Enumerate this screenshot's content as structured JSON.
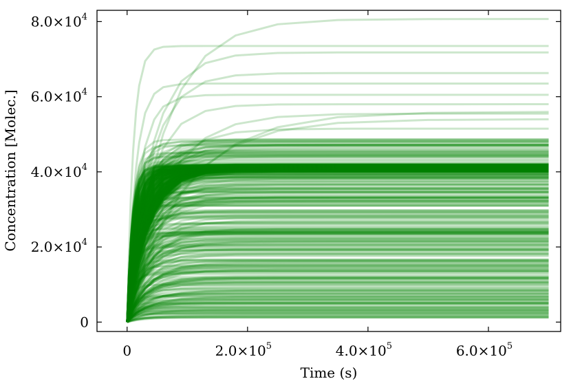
{
  "chart_data": {
    "type": "line",
    "xlabel": "Time (s)",
    "ylabel": "Concentration [Molec.]",
    "xlim": [
      -50000,
      720000
    ],
    "ylim": [
      -2500,
      83000
    ],
    "xticks": [
      {
        "value": 0,
        "mant": "0",
        "exp": ""
      },
      {
        "value": 200000,
        "mant": "2.0×10",
        "exp": "5"
      },
      {
        "value": 400000,
        "mant": "4.0×10",
        "exp": "5"
      },
      {
        "value": 600000,
        "mant": "6.0×10",
        "exp": "5"
      }
    ],
    "yticks": [
      {
        "value": 0,
        "mant": "0",
        "exp": ""
      },
      {
        "value": 20000,
        "mant": "2.0×10",
        "exp": "4"
      },
      {
        "value": 40000,
        "mant": "4.0×10",
        "exp": "4"
      },
      {
        "value": 60000,
        "mant": "6.0×10",
        "exp": "4"
      },
      {
        "value": 80000,
        "mant": "8.0×10",
        "exp": "4"
      }
    ],
    "line_color": "#008000",
    "line_alpha": 0.2,
    "x_end": 700000,
    "knee_x": 20000,
    "series_note_count": 520,
    "dense_band": [
      40000,
      42000
    ],
    "upper_plateaus": [
      80700,
      73500,
      71800,
      66300,
      63500,
      60500,
      58000,
      56000,
      55500,
      54000,
      51500
    ],
    "dense_range": [
      1000,
      49000
    ]
  }
}
